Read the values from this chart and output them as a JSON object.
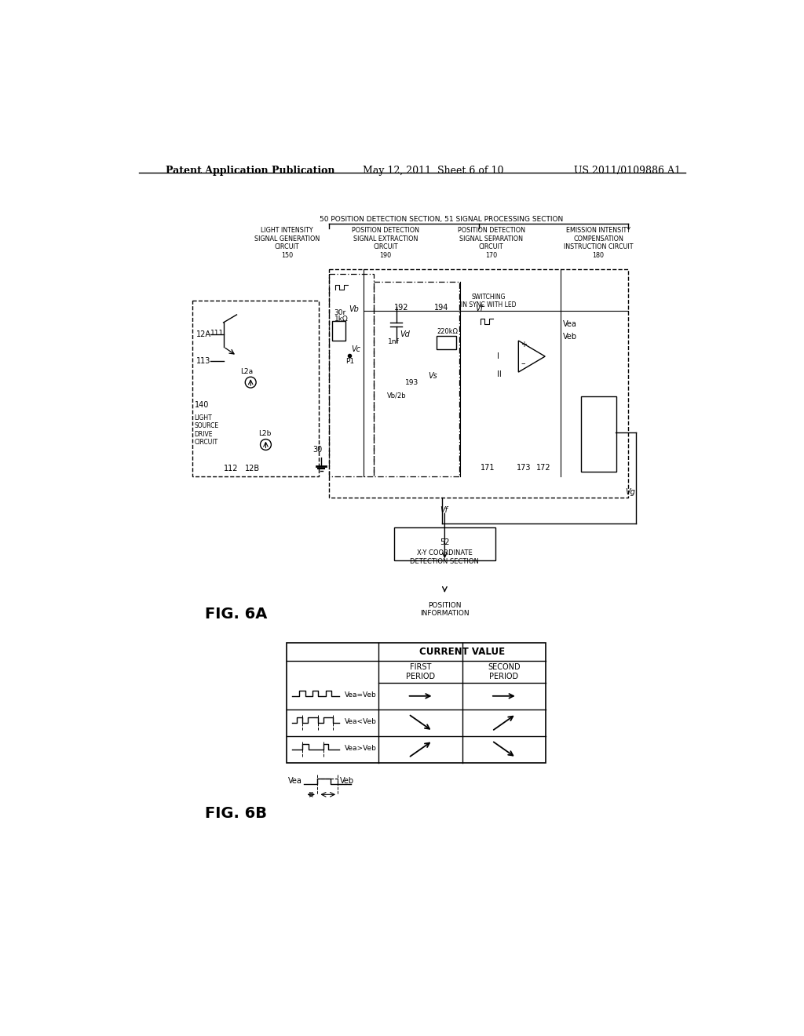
{
  "page_header_left": "Patent Application Publication",
  "page_header_center": "May 12, 2011  Sheet 6 of 10",
  "page_header_right": "US 2011/0109886 A1",
  "fig6a_label": "FIG. 6A",
  "fig6b_label": "FIG. 6B",
  "bg_color": "#ffffff",
  "line_color": "#000000",
  "title_50_51": "50 POSITION DETECTION SECTION, 51 SIGNAL PROCESSING SECTION",
  "table_header": "CURRENT VALUE",
  "table_col1": "FIRST\nPERIOD",
  "table_col2": "SECOND\nPERIOD",
  "row_labels": [
    "Vea=Veb",
    "Vea<Veb",
    "Vea>Veb"
  ],
  "vea_label": "Vea",
  "veb_label": "Veb"
}
